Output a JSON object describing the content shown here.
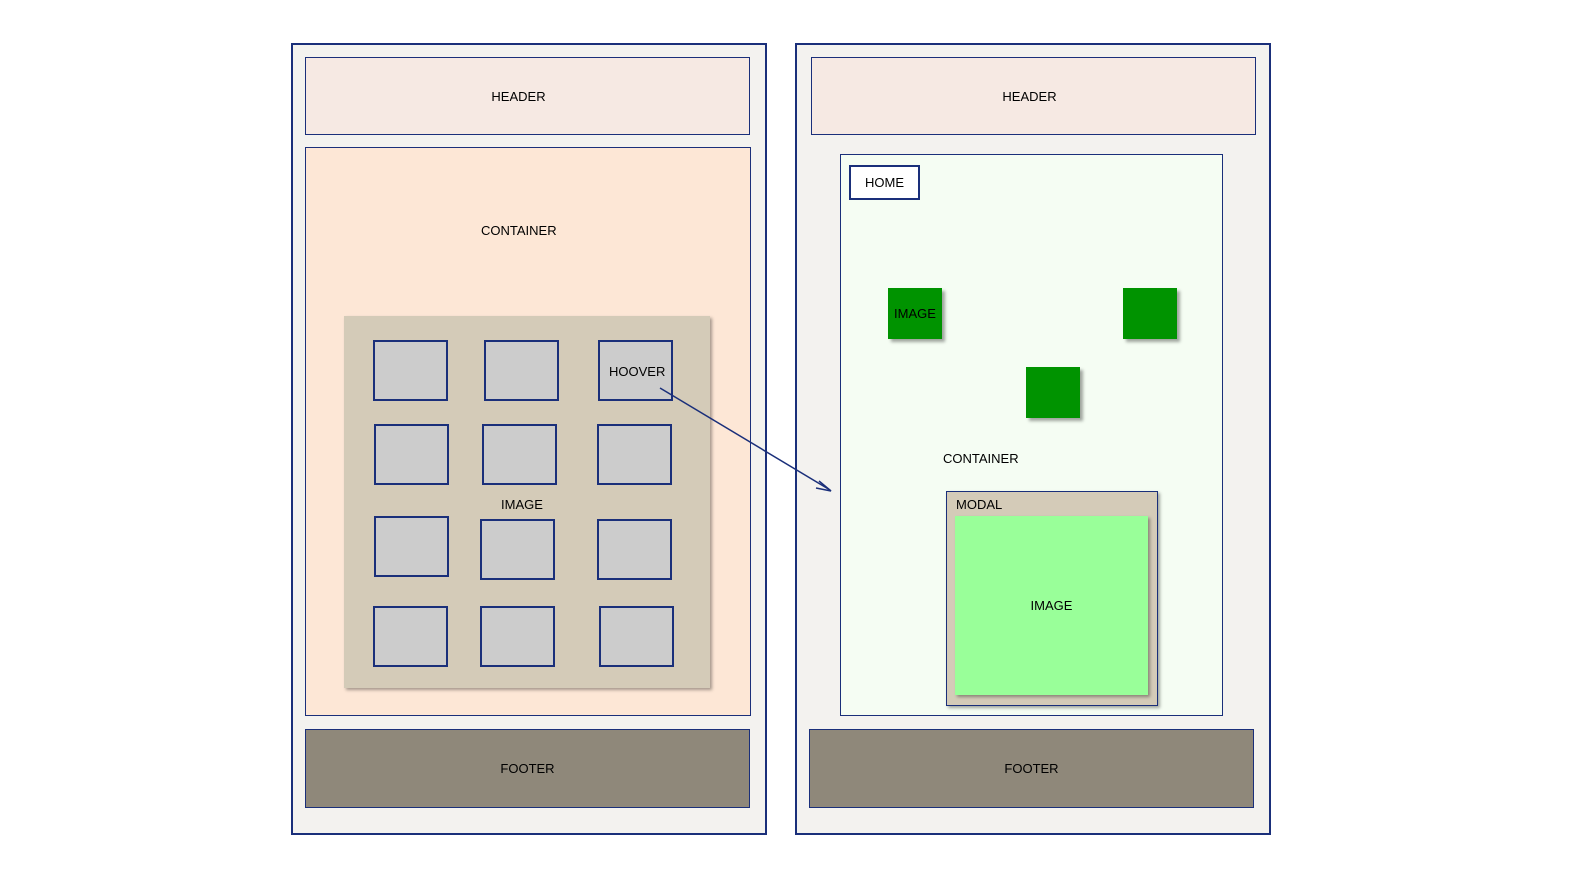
{
  "left": {
    "header": "HEADER",
    "container": "CONTAINER",
    "grid_label": "IMAGE",
    "hover_label": "HOOVER",
    "footer": "FOOTER"
  },
  "right": {
    "header": "HEADER",
    "home_button": "HOME",
    "image_label": "IMAGE",
    "container": "CONTAINER",
    "modal_title": "MODAL",
    "modal_image": "IMAGE",
    "footer": "FOOTER"
  },
  "colors": {
    "border": "#1a2f7a",
    "header": "#f6e9e3",
    "container_left": "#fde7d6",
    "container_right": "#f5fdf3",
    "footer": "#8f887a",
    "grid_panel": "#d4cbb8",
    "thumbnail": "#cccccc",
    "image_green": "#009300",
    "modal_image": "#99ff99"
  }
}
